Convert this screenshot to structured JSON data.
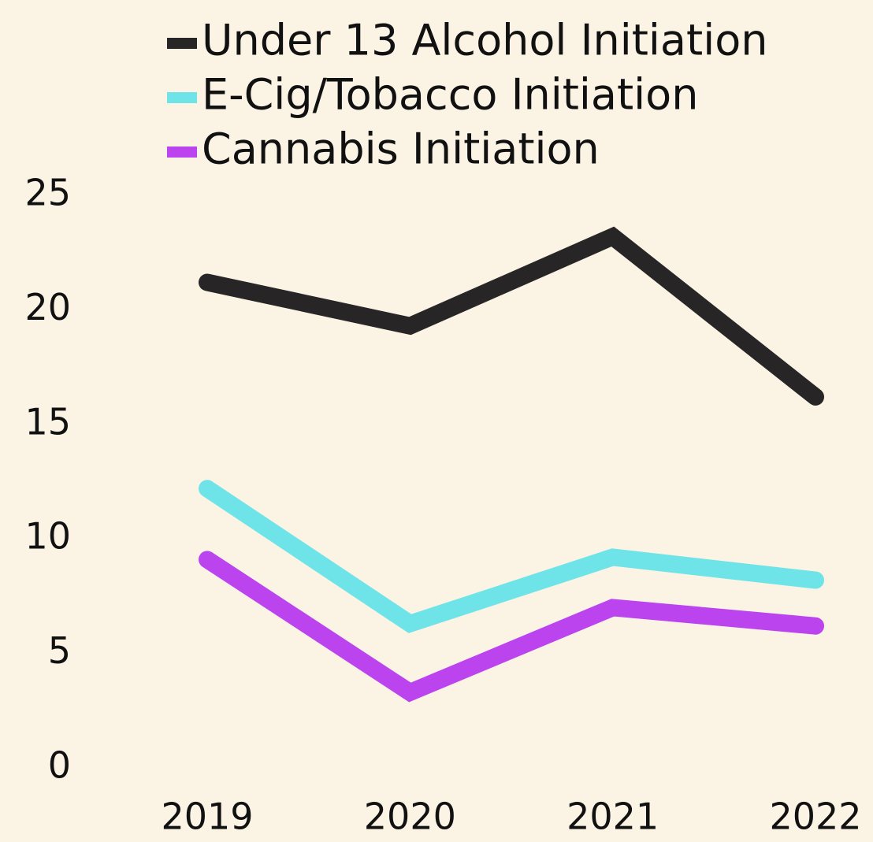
{
  "chart_data": {
    "type": "line",
    "categories": [
      "2019",
      "2020",
      "2021",
      "2022"
    ],
    "series": [
      {
        "name": "Under 13 Alcohol Initiation",
        "color": "#272526",
        "values": [
          21.2,
          19.3,
          23.2,
          16.2
        ]
      },
      {
        "name": "E-Cig/Tobacco Initiation",
        "color": "#6ee4e8",
        "values": [
          12.2,
          6.3,
          9.2,
          8.2
        ]
      },
      {
        "name": "Cannabis Initiation",
        "color": "#bb44ee",
        "values": [
          9.1,
          3.3,
          7.0,
          6.2
        ]
      }
    ],
    "ylim": [
      0,
      25
    ],
    "yticks": [
      0,
      5,
      10,
      15,
      20,
      25
    ],
    "grid": false
  }
}
